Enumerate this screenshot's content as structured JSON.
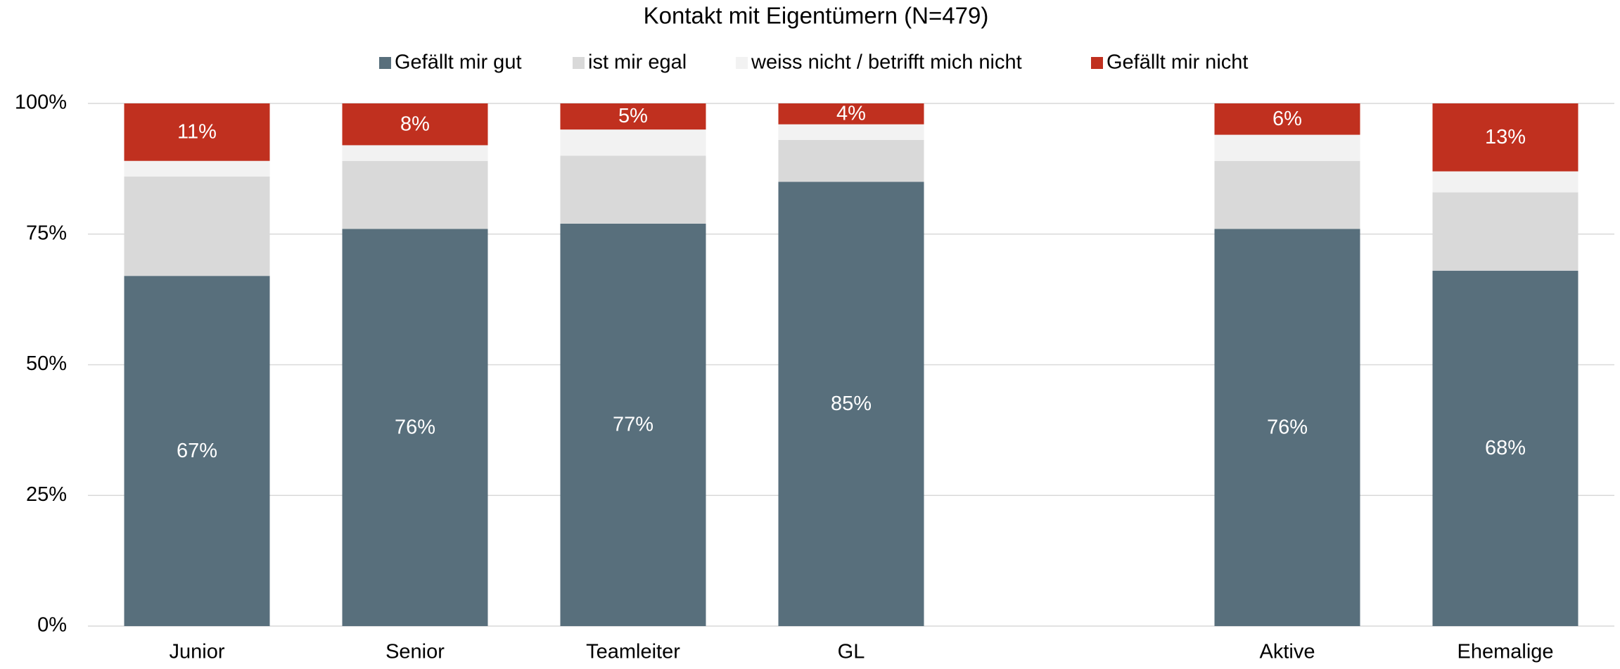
{
  "chart_data": {
    "type": "stacked_bar",
    "title": "Kontakt mit Eigentümern (N=479)",
    "categories": [
      "Junior",
      "Senior",
      "Teamleiter",
      "GL",
      null,
      "Aktive",
      "Ehemalige"
    ],
    "series": [
      {
        "name": "Gefällt mir gut",
        "color": "#586f7c",
        "values": [
          67,
          76,
          77,
          85,
          null,
          76,
          68
        ],
        "value_labels": [
          "67%",
          "76%",
          "77%",
          "85%",
          null,
          "76%",
          "68%"
        ]
      },
      {
        "name": "ist mir egal",
        "color": "#d9d9d9",
        "values": [
          19,
          13,
          13,
          8,
          null,
          13,
          15
        ]
      },
      {
        "name": "weiss nicht / betrifft mich nicht",
        "color": "#f2f2f2",
        "values": [
          3,
          3,
          5,
          3,
          null,
          5,
          4
        ]
      },
      {
        "name": "Gefällt mir nicht",
        "color": "#c0301f",
        "values": [
          11,
          8,
          5,
          4,
          null,
          6,
          13
        ],
        "value_labels": [
          "11%",
          "8%",
          "5%",
          "4%",
          null,
          "6%",
          "13%"
        ]
      }
    ],
    "ylim": [
      0,
      100
    ],
    "yticks": [
      {
        "value": 0,
        "label": "0%"
      },
      {
        "value": 25,
        "label": "25%"
      },
      {
        "value": 50,
        "label": "50%"
      },
      {
        "value": 75,
        "label": "75%"
      },
      {
        "value": 100,
        "label": "100%"
      }
    ],
    "grid": true,
    "legend": "top"
  }
}
